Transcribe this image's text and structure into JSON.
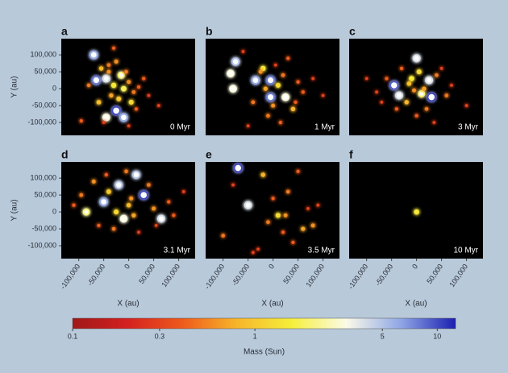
{
  "chart_data": [
    {
      "type": "scatter",
      "title": "a",
      "annotation": "0 Myr",
      "ylabel": "Y (au)",
      "xlim": [
        -135000,
        133000
      ],
      "ylim": [
        -138000,
        148000
      ],
      "yticks": [
        {
          "value": 100000,
          "label": "100,000"
        },
        {
          "value": 50000,
          "label": "50,000"
        },
        0,
        {
          "value": -50000,
          "label": "-50,000"
        },
        {
          "value": -100000,
          "label": "-100,000"
        }
      ],
      "x": [
        -70000,
        -65000,
        -45000,
        -25000,
        -10000,
        -45000,
        -55000,
        -30000,
        -15000,
        0,
        10000,
        -20000,
        -35000,
        -5000,
        20000,
        -60000,
        -40000,
        5000,
        30000,
        -80000,
        -10000,
        -25000,
        15000,
        40000,
        -50000,
        -30000,
        0,
        -95000,
        60000,
        -40000
      ],
      "y": [
        100000,
        25000,
        30000,
        -65000,
        -85000,
        -85000,
        60000,
        10000,
        40000,
        20000,
        -10000,
        -30000,
        -20000,
        50000,
        5000,
        -40000,
        70000,
        -40000,
        30000,
        10000,
        0,
        80000,
        -60000,
        -20000,
        -100000,
        120000,
        -110000,
        -95000,
        -50000,
        50000
      ],
      "mass": [
        6,
        8,
        4,
        10,
        6,
        3,
        0.8,
        1.5,
        2,
        0.6,
        0.5,
        1,
        0.7,
        0.5,
        0.4,
        0.9,
        0.5,
        1.2,
        0.4,
        0.5,
        1.8,
        0.6,
        0.4,
        0.3,
        0.3,
        0.4,
        0.3,
        0.4,
        0.3,
        0.6
      ]
    },
    {
      "type": "scatter",
      "title": "b",
      "annotation": "1 Myr",
      "xlim": [
        -135000,
        133000
      ],
      "ylim": [
        -138000,
        148000
      ],
      "x": [
        -75000,
        -85000,
        -80000,
        -35000,
        -5000,
        -5000,
        25000,
        40000,
        -20000,
        10000,
        0,
        -15000,
        20000,
        50000,
        -40000,
        -60000,
        60000,
        30000,
        -10000,
        5000,
        80000,
        15000,
        -25000,
        100000,
        -50000,
        45000
      ],
      "y": [
        80000,
        45000,
        0,
        25000,
        25000,
        -25000,
        -25000,
        -60000,
        60000,
        10000,
        -50000,
        0,
        40000,
        20000,
        -40000,
        110000,
        -10000,
        90000,
        -80000,
        70000,
        30000,
        -100000,
        50000,
        -20000,
        -110000,
        -40000
      ],
      "mass": [
        5,
        3,
        3,
        6,
        8,
        8,
        3,
        0.8,
        1.5,
        1.2,
        0.6,
        0.7,
        0.5,
        0.4,
        0.5,
        0.3,
        0.4,
        0.4,
        0.5,
        0.3,
        0.3,
        0.4,
        0.6,
        0.3,
        0.3,
        0.4
      ]
    },
    {
      "type": "scatter",
      "title": "c",
      "annotation": "3 Myr",
      "xlim": [
        -135000,
        133000
      ],
      "ylim": [
        -138000,
        148000
      ],
      "x": [
        0,
        -45000,
        25000,
        -35000,
        30000,
        10000,
        -10000,
        -20000,
        5000,
        15000,
        -5000,
        40000,
        -60000,
        -80000,
        60000,
        20000,
        -30000,
        50000,
        0,
        -15000,
        70000,
        -70000,
        100000,
        -100000,
        35000,
        -40000
      ],
      "y": [
        90000,
        10000,
        25000,
        -20000,
        -25000,
        -15000,
        30000,
        -40000,
        50000,
        0,
        -5000,
        40000,
        30000,
        -10000,
        -20000,
        -60000,
        60000,
        60000,
        -80000,
        15000,
        10000,
        -40000,
        -50000,
        30000,
        -100000,
        -60000
      ],
      "mass": [
        4,
        9,
        4,
        4,
        10,
        2,
        1.5,
        0.8,
        1.2,
        0.7,
        0.6,
        0.5,
        0.4,
        0.3,
        0.5,
        0.5,
        0.4,
        0.3,
        0.4,
        0.9,
        0.3,
        0.3,
        0.3,
        0.3,
        0.3,
        0.4
      ]
    },
    {
      "type": "scatter",
      "title": "d",
      "annotation": "3.1 Myr",
      "ylabel": "Y (au)",
      "xlabel": "X (au)",
      "xlim": [
        -135000,
        133000
      ],
      "ylim": [
        -138000,
        148000
      ],
      "xticks": [
        {
          "value": -100000,
          "label": "-100,000"
        },
        {
          "value": -50000,
          "label": "-50,000"
        },
        0,
        {
          "value": 50000,
          "label": "50,000"
        },
        {
          "value": 100000,
          "label": "100,000"
        }
      ],
      "yticks": [
        {
          "value": 100000,
          "label": "100,000"
        },
        {
          "value": 50000,
          "label": "50,000"
        },
        0,
        {
          "value": -50000,
          "label": "-50,000"
        },
        {
          "value": -100000,
          "label": "-100,000"
        }
      ],
      "x": [
        -20000,
        15000,
        30000,
        -50000,
        -10000,
        65000,
        -85000,
        -40000,
        0,
        -70000,
        -30000,
        10000,
        40000,
        50000,
        -95000,
        -60000,
        80000,
        20000,
        -5000,
        -110000,
        90000,
        -45000,
        55000,
        -25000,
        5000,
        110000
      ],
      "y": [
        80000,
        110000,
        50000,
        30000,
        -20000,
        -20000,
        0,
        60000,
        20000,
        90000,
        -50000,
        -10000,
        80000,
        10000,
        50000,
        -40000,
        30000,
        -60000,
        120000,
        20000,
        -10000,
        110000,
        -40000,
        0,
        40000,
        60000
      ],
      "mass": [
        5,
        5,
        10,
        6,
        3,
        4,
        2,
        1,
        0.8,
        0.6,
        0.5,
        0.7,
        0.5,
        0.6,
        0.5,
        0.4,
        0.4,
        0.3,
        0.5,
        0.4,
        0.4,
        0.4,
        0.3,
        1.2,
        0.6,
        0.3
      ]
    },
    {
      "type": "scatter",
      "title": "e",
      "annotation": "3.5 Myr",
      "xlabel": "X (au)",
      "xlim": [
        -135000,
        133000
      ],
      "ylim": [
        -138000,
        148000
      ],
      "xticks": [
        {
          "value": -100000,
          "label": "-100,000"
        },
        {
          "value": -50000,
          "label": "-50,000"
        },
        0,
        {
          "value": 50000,
          "label": "50,000"
        },
        {
          "value": 100000,
          "label": "100,000"
        }
      ],
      "x": [
        -70000,
        -50000,
        -20000,
        10000,
        30000,
        -100000,
        40000,
        60000,
        80000,
        0,
        -30000,
        20000,
        -80000,
        50000,
        90000,
        -10000,
        25000,
        -40000,
        70000
      ],
      "y": [
        130000,
        20000,
        110000,
        -10000,
        60000,
        -70000,
        -90000,
        -50000,
        -40000,
        40000,
        -110000,
        -60000,
        80000,
        120000,
        20000,
        -30000,
        -10000,
        -120000,
        10000
      ],
      "mass": [
        10,
        4,
        0.8,
        1.2,
        0.5,
        0.5,
        0.4,
        0.7,
        0.6,
        0.4,
        0.3,
        0.4,
        0.3,
        0.4,
        0.3,
        0.5,
        0.6,
        0.3,
        0.3
      ]
    },
    {
      "type": "scatter",
      "title": "f",
      "annotation": "10 Myr",
      "xlabel": "X (au)",
      "xlim": [
        -135000,
        133000
      ],
      "ylim": [
        -138000,
        148000
      ],
      "xticks": [
        {
          "value": -100000,
          "label": "-100,000"
        },
        {
          "value": -50000,
          "label": "-50,000"
        },
        0,
        {
          "value": 50000,
          "label": "50,000"
        },
        {
          "value": 100000,
          "label": "100,000"
        }
      ],
      "x": [
        0
      ],
      "y": [
        0
      ],
      "mass": [
        1.5
      ]
    }
  ],
  "colorbar": {
    "label": "Mass (Sun)",
    "log": true,
    "lim": [
      0.1,
      12.6
    ],
    "ticks": [
      0.1,
      0.3,
      1,
      5,
      10
    ],
    "colors": [
      "#a01818",
      "#d42020",
      "#ee5a1c",
      "#f7b52a",
      "#f6ef3a",
      "#fbfbe8",
      "#8fa6e6",
      "#1a1fb0"
    ]
  }
}
